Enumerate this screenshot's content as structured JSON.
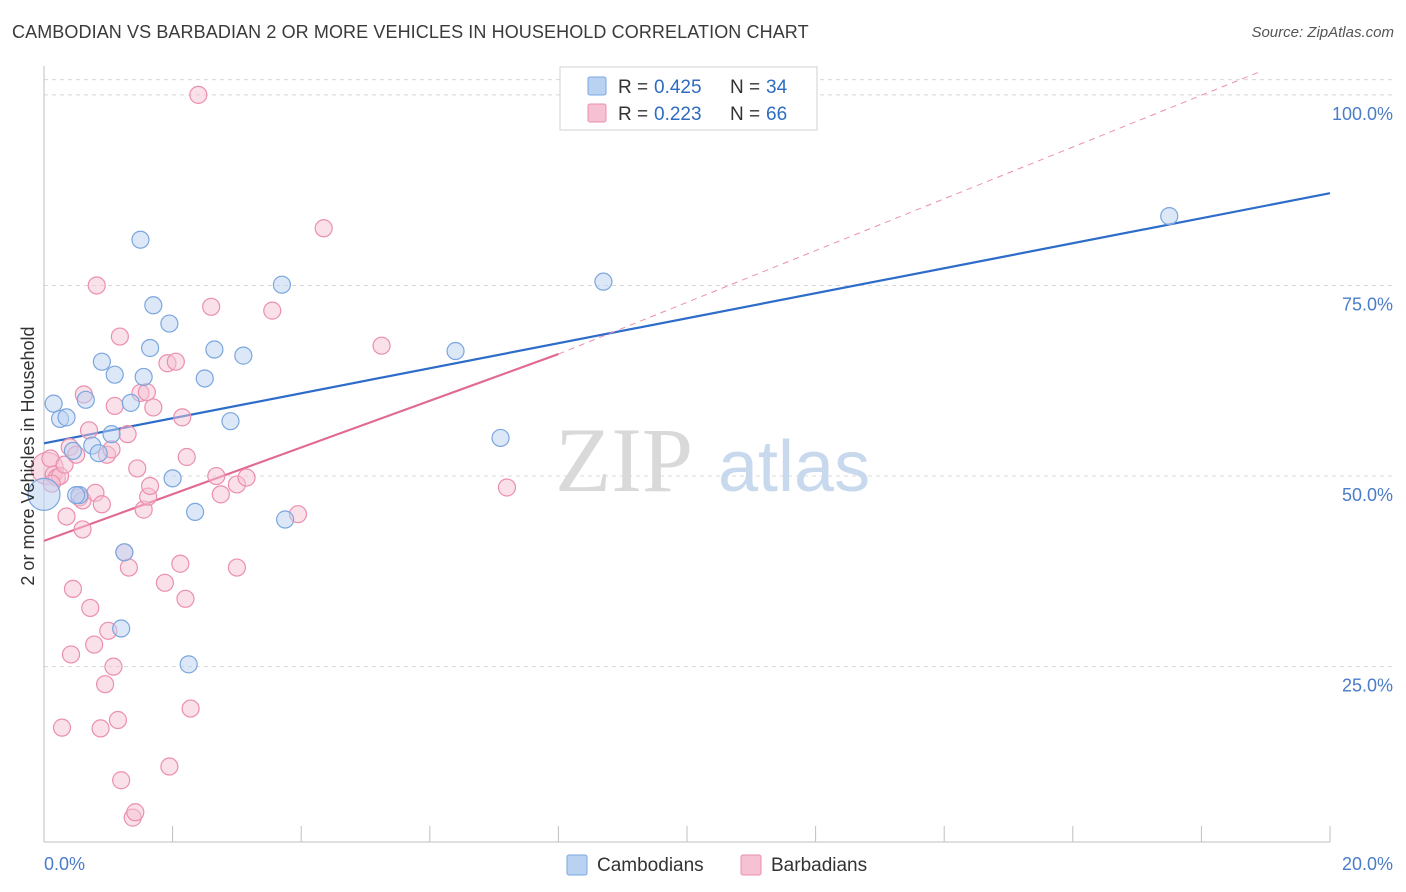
{
  "header": {
    "title": "CAMBODIAN VS BARBADIAN 2 OR MORE VEHICLES IN HOUSEHOLD CORRELATION CHART",
    "source": "Source: ZipAtlas.com"
  },
  "watermark": {
    "zip": "ZIP",
    "atlas": "atlas"
  },
  "colors": {
    "cambodians_fill": "#b9d2f2",
    "cambodians_stroke": "#7ba6de",
    "cambodians_line": "#2d6cc9",
    "barbadians_fill": "#f6c2d3",
    "barbadians_stroke": "#eb8fae",
    "barbadians_line": "#e06a92",
    "grid": "#d8d8d8",
    "axis_label": "#4a7cc9"
  },
  "legend": {
    "rows": [
      {
        "r_label": "R =",
        "r_value": "0.425",
        "n_label": "N =",
        "n_value": "34"
      },
      {
        "r_label": "R =",
        "r_value": "0.223",
        "n_label": "N =",
        "n_value": "66"
      }
    ]
  },
  "chart_data": {
    "type": "scatter",
    "title": "CAMBODIAN VS BARBADIAN 2 OR MORE VEHICLES IN HOUSEHOLD CORRELATION CHART",
    "xlabel": "",
    "ylabel": "2 or more Vehicles in Household",
    "xlim": [
      0,
      20
    ],
    "ylim": [
      2,
      103
    ],
    "x_tick_labels": [
      "0.0%",
      "20.0%"
    ],
    "y_ticks": [
      25,
      50,
      75,
      100
    ],
    "y_tick_labels": [
      "25.0%",
      "50.0%",
      "75.0%",
      "100.0%"
    ],
    "grid": true,
    "legend_position": "top-center",
    "series": [
      {
        "name": "Cambodians",
        "r": 0.425,
        "n": 34,
        "trend": {
          "x0": 0,
          "y0": 54.3,
          "x1": 20,
          "y1": 87.1
        },
        "points": [
          {
            "x": 0.0,
            "y": 47.6,
            "big": true
          },
          {
            "x": 0.15,
            "y": 59.5
          },
          {
            "x": 0.25,
            "y": 57.5
          },
          {
            "x": 0.35,
            "y": 57.7
          },
          {
            "x": 0.45,
            "y": 53.3
          },
          {
            "x": 0.55,
            "y": 47.5
          },
          {
            "x": 0.65,
            "y": 60.0
          },
          {
            "x": 0.75,
            "y": 54.0
          },
          {
            "x": 0.85,
            "y": 53.0
          },
          {
            "x": 0.9,
            "y": 65.0
          },
          {
            "x": 1.05,
            "y": 55.5
          },
          {
            "x": 1.1,
            "y": 63.3
          },
          {
            "x": 1.2,
            "y": 30.0
          },
          {
            "x": 1.25,
            "y": 40.0
          },
          {
            "x": 1.35,
            "y": 59.6
          },
          {
            "x": 1.5,
            "y": 81.0
          },
          {
            "x": 1.55,
            "y": 63.0
          },
          {
            "x": 1.65,
            "y": 66.8
          },
          {
            "x": 1.7,
            "y": 72.4
          },
          {
            "x": 1.95,
            "y": 70.0
          },
          {
            "x": 2.0,
            "y": 49.7
          },
          {
            "x": 2.25,
            "y": 25.3
          },
          {
            "x": 2.35,
            "y": 45.3
          },
          {
            "x": 2.5,
            "y": 62.8
          },
          {
            "x": 2.65,
            "y": 66.6
          },
          {
            "x": 2.9,
            "y": 57.2
          },
          {
            "x": 3.1,
            "y": 65.8
          },
          {
            "x": 3.7,
            "y": 75.1
          },
          {
            "x": 3.75,
            "y": 44.3
          },
          {
            "x": 6.4,
            "y": 66.4
          },
          {
            "x": 7.1,
            "y": 55.0
          },
          {
            "x": 8.7,
            "y": 75.5
          },
          {
            "x": 17.5,
            "y": 84.1
          },
          {
            "x": 0.5,
            "y": 47.5
          }
        ]
      },
      {
        "name": "Barbadians",
        "r": 0.223,
        "n": 66,
        "trend": {
          "x0": 0,
          "y0": 41.5,
          "x1": 8.0,
          "y1": 66.0
        },
        "trend_ext": {
          "x0": 8.0,
          "y0": 66.0,
          "x1": 18.9,
          "y1": 103
        },
        "points": [
          {
            "x": 0.05,
            "y": 51.0,
            "big": true
          },
          {
            "x": 0.1,
            "y": 52.3
          },
          {
            "x": 0.15,
            "y": 50.2
          },
          {
            "x": 0.2,
            "y": 49.8
          },
          {
            "x": 0.25,
            "y": 50.0
          },
          {
            "x": 0.28,
            "y": 17.0
          },
          {
            "x": 0.32,
            "y": 51.5
          },
          {
            "x": 0.35,
            "y": 44.7
          },
          {
            "x": 0.4,
            "y": 53.8
          },
          {
            "x": 0.42,
            "y": 26.6
          },
          {
            "x": 0.45,
            "y": 35.2
          },
          {
            "x": 0.5,
            "y": 52.8
          },
          {
            "x": 0.55,
            "y": 47.2
          },
          {
            "x": 0.6,
            "y": 46.8
          },
          {
            "x": 0.62,
            "y": 60.7
          },
          {
            "x": 0.7,
            "y": 56.0
          },
          {
            "x": 0.72,
            "y": 32.7
          },
          {
            "x": 0.78,
            "y": 27.9
          },
          {
            "x": 0.8,
            "y": 47.8
          },
          {
            "x": 0.82,
            "y": 75.0
          },
          {
            "x": 0.88,
            "y": 16.9
          },
          {
            "x": 0.9,
            "y": 46.3
          },
          {
            "x": 0.95,
            "y": 22.7
          },
          {
            "x": 0.98,
            "y": 52.8
          },
          {
            "x": 1.0,
            "y": 29.7
          },
          {
            "x": 1.05,
            "y": 53.5
          },
          {
            "x": 1.08,
            "y": 25.0
          },
          {
            "x": 1.1,
            "y": 59.2
          },
          {
            "x": 1.15,
            "y": 18.0
          },
          {
            "x": 1.18,
            "y": 68.3
          },
          {
            "x": 1.2,
            "y": 10.1
          },
          {
            "x": 1.25,
            "y": 40.0
          },
          {
            "x": 1.3,
            "y": 55.5
          },
          {
            "x": 1.32,
            "y": 38.0
          },
          {
            "x": 1.38,
            "y": 5.2
          },
          {
            "x": 1.42,
            "y": 5.9
          },
          {
            "x": 1.45,
            "y": 51.0
          },
          {
            "x": 1.5,
            "y": 60.9
          },
          {
            "x": 1.55,
            "y": 45.6
          },
          {
            "x": 1.6,
            "y": 61.0
          },
          {
            "x": 1.62,
            "y": 47.3
          },
          {
            "x": 1.65,
            "y": 48.7
          },
          {
            "x": 1.7,
            "y": 59.0
          },
          {
            "x": 1.88,
            "y": 36.0
          },
          {
            "x": 1.92,
            "y": 64.8
          },
          {
            "x": 1.95,
            "y": 11.9
          },
          {
            "x": 2.05,
            "y": 65.0
          },
          {
            "x": 2.12,
            "y": 38.5
          },
          {
            "x": 2.15,
            "y": 57.7
          },
          {
            "x": 2.2,
            "y": 33.9
          },
          {
            "x": 2.22,
            "y": 52.5
          },
          {
            "x": 2.28,
            "y": 19.5
          },
          {
            "x": 2.4,
            "y": 100.0
          },
          {
            "x": 2.6,
            "y": 72.2
          },
          {
            "x": 2.68,
            "y": 50.0
          },
          {
            "x": 2.75,
            "y": 47.6
          },
          {
            "x": 3.0,
            "y": 48.9
          },
          {
            "x": 3.0,
            "y": 38.0
          },
          {
            "x": 3.15,
            "y": 49.8
          },
          {
            "x": 3.55,
            "y": 71.7
          },
          {
            "x": 3.95,
            "y": 45.0
          },
          {
            "x": 4.35,
            "y": 82.5
          },
          {
            "x": 5.25,
            "y": 67.1
          },
          {
            "x": 7.2,
            "y": 48.5
          },
          {
            "x": 0.12,
            "y": 49.0
          },
          {
            "x": 0.6,
            "y": 43.0
          }
        ]
      }
    ]
  },
  "bottom_legend": {
    "items": [
      "Cambodians",
      "Barbadians"
    ]
  }
}
